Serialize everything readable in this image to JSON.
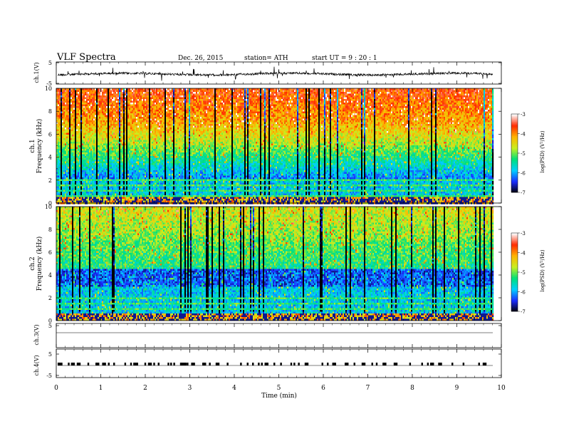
{
  "header": {
    "title": "VLF  Spectra",
    "date": "Dec. 26,  2015",
    "station": "station= ATH",
    "start": "start  UT  =    9  : 20 : 1"
  },
  "labels": {
    "ch1_v": "ch.1(V)",
    "ch1_freq": "ch.1",
    "ch1_freq_unit": "Frequency  (kHz)",
    "ch2_freq": "ch.2",
    "ch2_freq_unit": "Frequency  (kHz)",
    "ch3_v": "ch.3(V)",
    "ch4_v": "ch.4(V)",
    "xlabel": "Time  (min)",
    "cbar_label": "log(PSD) (V²/Hz)"
  },
  "colors": {
    "colormap": [
      "#000000",
      "#1a2bff",
      "#00d0ff",
      "#00e07a",
      "#c8ef20",
      "#ffb400",
      "#ff2a00",
      "#ffffff"
    ]
  },
  "chart_data": [
    {
      "type": "line",
      "panel": "ch.1(V)",
      "ylim": [
        -5,
        5
      ],
      "yticks": [
        "5",
        "-5"
      ],
      "description_values": {
        "baseline": 0,
        "noise_amplitude": 1.2
      }
    },
    {
      "type": "heatmap",
      "panel": "ch.1",
      "ylabel": "Frequency  (kHz)",
      "ylim": [
        0,
        10
      ],
      "yticks": [
        "0",
        "2",
        "4",
        "6",
        "8",
        "10"
      ],
      "xlim": [
        0,
        10
      ],
      "color_range": [
        -7,
        -3
      ]
    },
    {
      "type": "heatmap",
      "panel": "ch.2",
      "ylabel": "Frequency  (kHz)",
      "ylim": [
        0,
        10
      ],
      "yticks": [
        "0",
        "2",
        "4",
        "6",
        "8",
        "10"
      ],
      "xlim": [
        0,
        10
      ],
      "color_range": [
        -7,
        -3
      ]
    },
    {
      "type": "line",
      "panel": "ch.3(V)",
      "ylim": [
        -5,
        5
      ],
      "yticks": [
        "5"
      ],
      "values_constant": 0
    },
    {
      "type": "line",
      "panel": "ch.4(V)",
      "ylim": [
        -5,
        5
      ],
      "yticks": [
        "5",
        "-5"
      ],
      "pulses_min": [
        0.05,
        0.12,
        0.28,
        0.35,
        0.48,
        0.52,
        0.72,
        0.9,
        1.05,
        1.18,
        1.3,
        1.55,
        1.68,
        1.75,
        1.82,
        2.0,
        2.08,
        2.2,
        2.3,
        2.52,
        2.58,
        2.65,
        2.8,
        2.86,
        2.95,
        3.05,
        3.3,
        3.45,
        3.6,
        3.85,
        4.15,
        4.3,
        4.42,
        4.55,
        4.62,
        4.7,
        4.9,
        5.05,
        5.28,
        5.35,
        5.45,
        5.6,
        5.98,
        6.1,
        6.22,
        6.5,
        6.7,
        6.88,
        7.1,
        7.2,
        7.35,
        7.6,
        7.95,
        8.22,
        8.35,
        8.42,
        8.6,
        8.9,
        9.15,
        9.5,
        9.6
      ],
      "xticks": [
        "0",
        "1",
        "2",
        "3",
        "4",
        "5",
        "6",
        "7",
        "8",
        "9",
        "10"
      ],
      "xlim": [
        0,
        10
      ],
      "xlabel": "Time  (min)"
    },
    {
      "type": "colorbar",
      "ticks": [
        "-3",
        "-4",
        "-5",
        "-6",
        "-7"
      ],
      "range": [
        -7,
        -3
      ],
      "label": "log(PSD) (V²/Hz)"
    }
  ]
}
